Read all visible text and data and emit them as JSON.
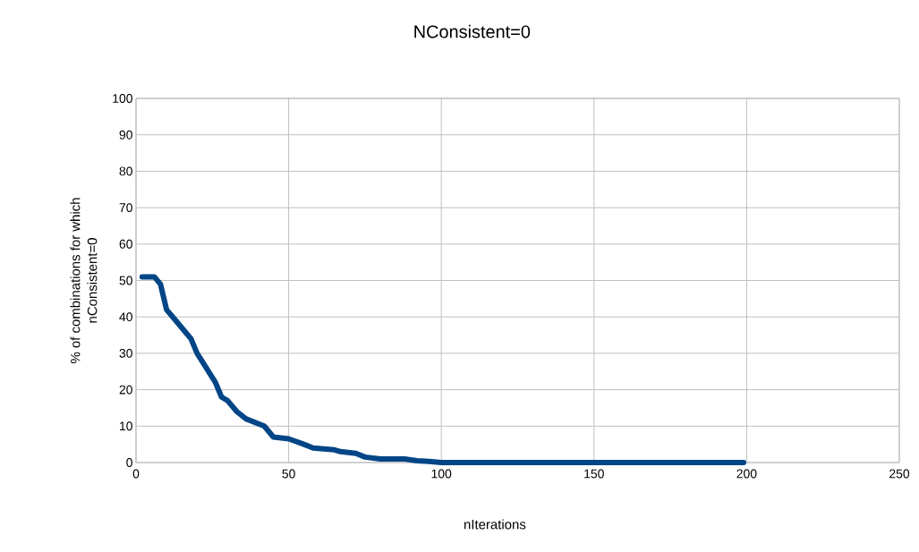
{
  "chart_data": {
    "type": "line",
    "title": "NConsistent=0",
    "xlabel": "nIterations",
    "ylabel": "% of combinations for which\nnConsistent=0",
    "series": [
      {
        "color": "#004586",
        "x": [
          2,
          6,
          8,
          10,
          13,
          16,
          18,
          20,
          23,
          26,
          28,
          30,
          33,
          36,
          42,
          45,
          50,
          55,
          58,
          65,
          67,
          72,
          75,
          80,
          88,
          92,
          96,
          100,
          199
        ],
        "values": [
          51,
          51,
          49,
          42,
          39,
          36,
          34,
          30,
          26,
          22,
          18,
          17,
          14,
          12,
          10,
          7,
          6.5,
          5,
          4,
          3.5,
          3,
          2.5,
          1.5,
          1,
          1,
          0.5,
          0.3,
          0,
          0
        ]
      }
    ],
    "xlim": [
      0,
      250
    ],
    "xticks": [
      0,
      50,
      100,
      150,
      200,
      250
    ],
    "ylim": [
      0,
      100
    ],
    "yticks": [
      0,
      10,
      20,
      30,
      40,
      50,
      60,
      70,
      80,
      90,
      100
    ],
    "grid": true,
    "marker": "none",
    "line_style": "solid"
  }
}
